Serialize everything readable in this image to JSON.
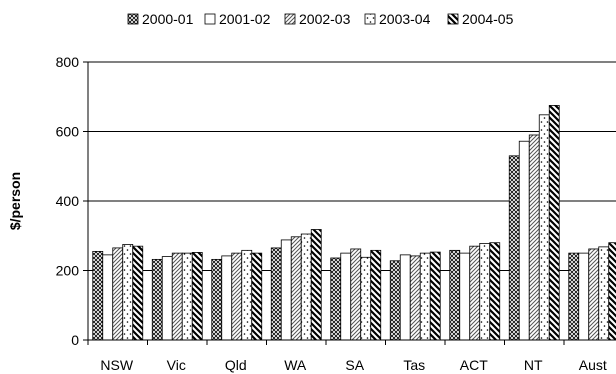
{
  "chart_data": {
    "type": "bar",
    "ylabel": "$/person",
    "xlabel": "",
    "ylim": [
      0,
      800
    ],
    "yticks": [
      0,
      200,
      400,
      600,
      800
    ],
    "grid": true,
    "legend_position": "top",
    "categories": [
      "NSW",
      "Vic",
      "Qld",
      "WA",
      "SA",
      "Tas",
      "ACT",
      "NT",
      "Aust"
    ],
    "series": [
      {
        "name": "2000-01",
        "pattern": "crosshatch",
        "values": [
          255,
          232,
          232,
          265,
          236,
          228,
          258,
          530,
          250
        ]
      },
      {
        "name": "2001-02",
        "pattern": "blank",
        "values": [
          245,
          240,
          242,
          288,
          250,
          245,
          250,
          572,
          250
        ]
      },
      {
        "name": "2002-03",
        "pattern": "diagonal",
        "values": [
          265,
          250,
          250,
          297,
          262,
          242,
          270,
          590,
          262
        ]
      },
      {
        "name": "2003-04",
        "pattern": "dots",
        "values": [
          275,
          250,
          258,
          305,
          238,
          250,
          278,
          648,
          268
        ]
      },
      {
        "name": "2004-05",
        "pattern": "thick-diagonal",
        "values": [
          270,
          252,
          250,
          318,
          258,
          253,
          280,
          675,
          280
        ]
      }
    ]
  }
}
